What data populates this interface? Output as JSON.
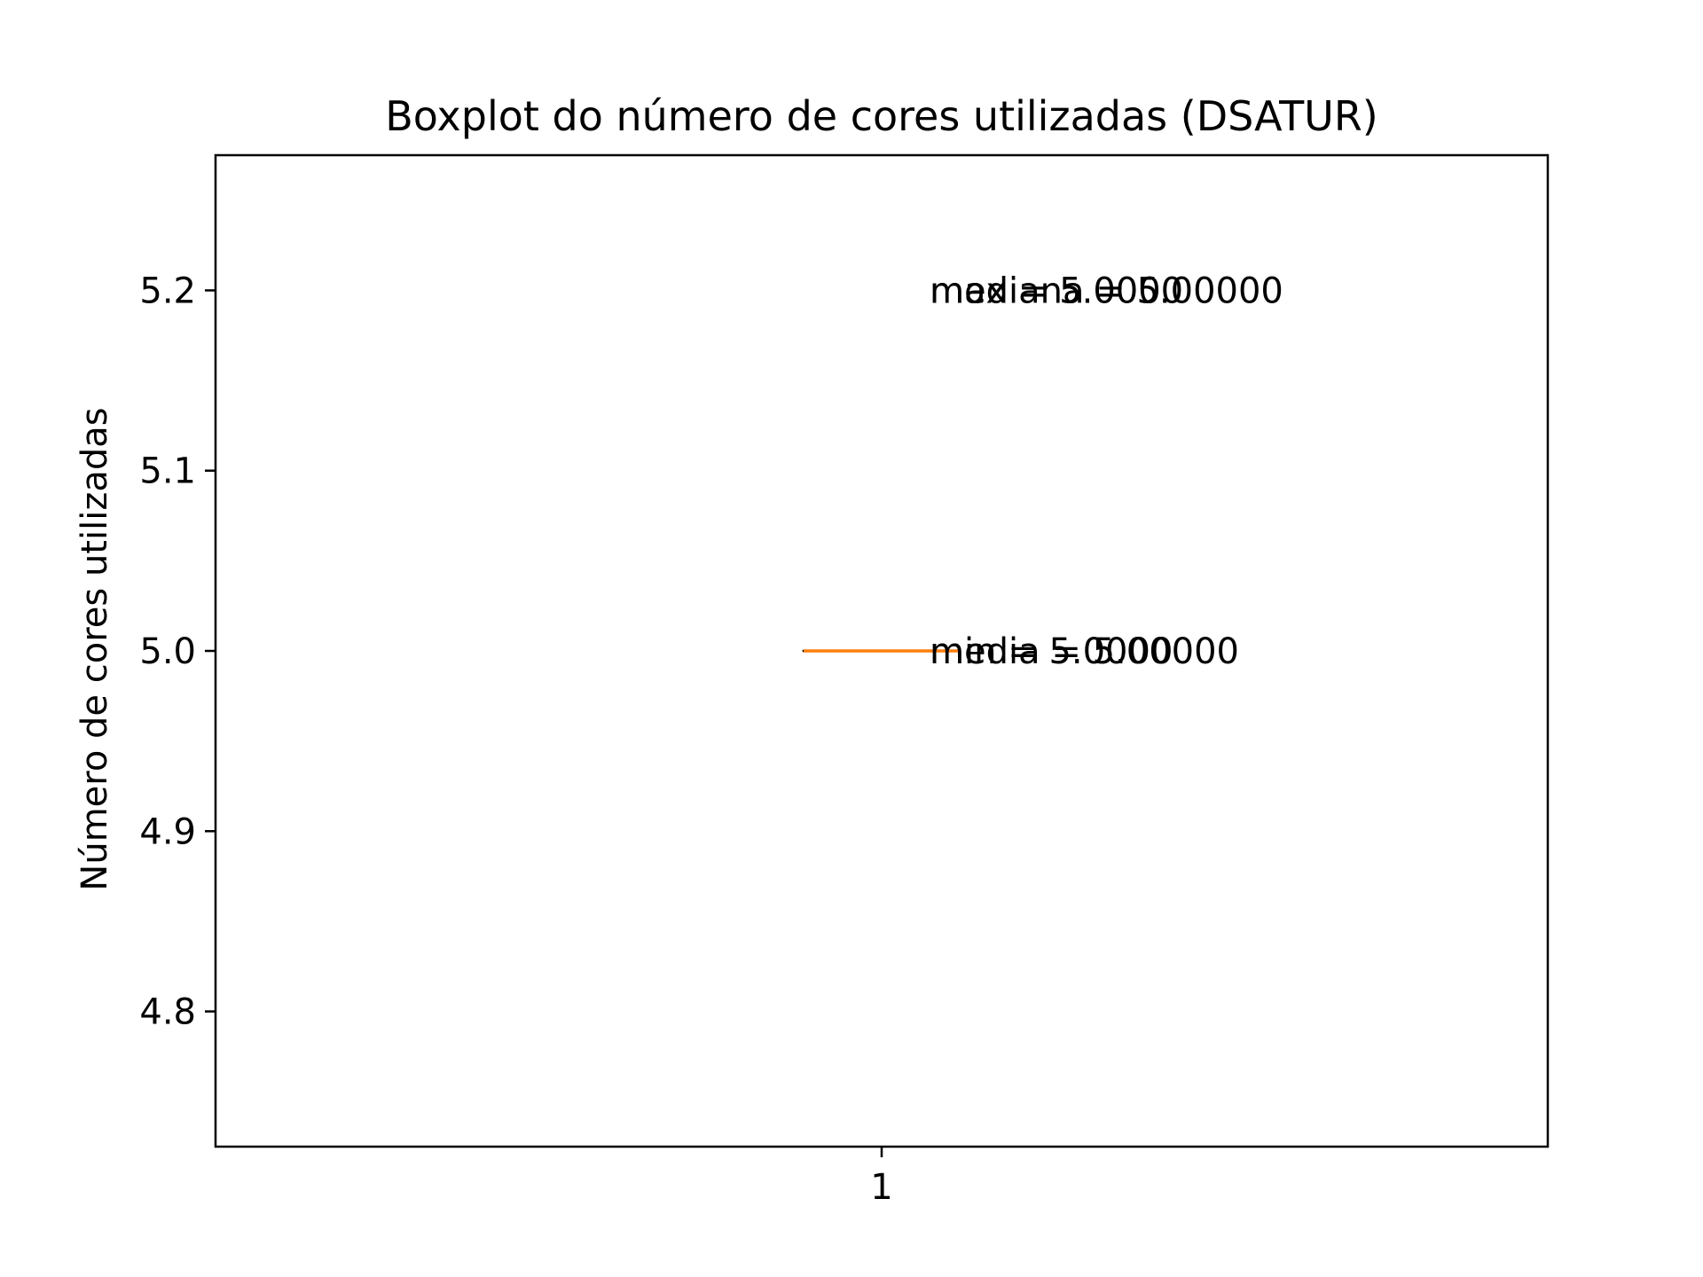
{
  "chart_data": {
    "type": "box",
    "title": "Boxplot do número de cores utilizadas (DSATUR)",
    "xlabel": "",
    "ylabel": "Número de cores utilizadas",
    "categories": [
      "1"
    ],
    "boxes": [
      {
        "min": 5.0,
        "q1": 5.0,
        "median": 5.0,
        "q3": 5.0,
        "max": 5.0,
        "mean": 5.0
      }
    ],
    "ylim": [
      4.725,
      5.275
    ],
    "yticks": [
      {
        "value": 4.8,
        "label": "4.8"
      },
      {
        "value": 4.9,
        "label": "4.9"
      },
      {
        "value": 5.0,
        "label": "5.0"
      },
      {
        "value": 5.1,
        "label": "5.1"
      },
      {
        "value": 5.2,
        "label": "5.2"
      }
    ],
    "annotations": [
      {
        "text": "max = 5.0000",
        "y": 5.2
      },
      {
        "text": "mediana = 5.00000",
        "y": 5.2
      },
      {
        "text": "min = 5.0000",
        "y": 5.0
      },
      {
        "text": "media = 5.00000",
        "y": 5.0
      }
    ],
    "colors": {
      "median": "#ff7f0e",
      "box": "#000000"
    },
    "grid": false
  }
}
